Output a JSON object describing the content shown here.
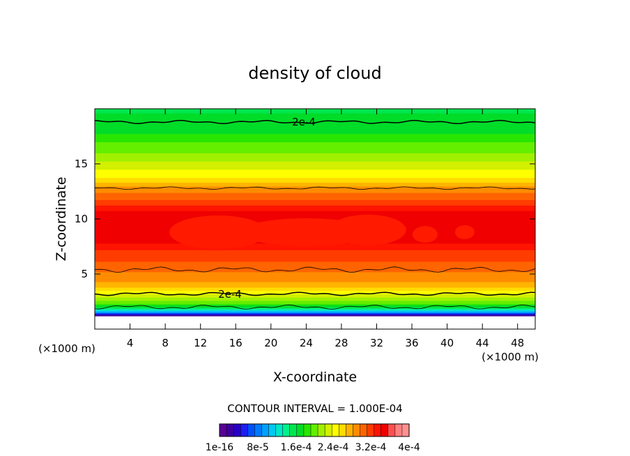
{
  "chart_data": {
    "type": "contour",
    "title": "density of cloud",
    "xlabel": "X-coordinate",
    "ylabel": "Z-coordinate",
    "x_unit": "(×1000 m)",
    "y_unit": "(×1000 m)",
    "xlim": [
      0,
      50
    ],
    "ylim": [
      0,
      20
    ],
    "x_ticks": [
      4,
      8,
      12,
      16,
      20,
      24,
      28,
      32,
      36,
      40,
      44,
      48
    ],
    "y_ticks": [
      5,
      10,
      15
    ],
    "contour_interval_text": "CONTOUR INTERVAL = 1.000E-04",
    "contour_labels": [
      "2e-4",
      "2e-4"
    ],
    "colorbar": {
      "labels": [
        "1e-16",
        "8e-5",
        "1.6e-4",
        "2.4e-4",
        "3.2e-4",
        "4e-4"
      ],
      "colors": [
        "#5a0096",
        "#3c00a0",
        "#2800c8",
        "#1e1ef0",
        "#0050ff",
        "#0078ff",
        "#00a0ff",
        "#00c8f0",
        "#00e6c8",
        "#00f08c",
        "#00e650",
        "#00dc28",
        "#28e600",
        "#64ee00",
        "#a0f000",
        "#d2f000",
        "#ffff00",
        "#ffdc00",
        "#ffb400",
        "#ff8c00",
        "#ff6400",
        "#ff3c00",
        "#ff1400",
        "#f00000",
        "#ff5050",
        "#ff8080",
        "#ff9090"
      ]
    },
    "profile": {
      "z": [
        0,
        1.2,
        1.6,
        2.0,
        2.4,
        2.8,
        3.2,
        3.6,
        4.0,
        4.6,
        5.2,
        5.8,
        6.5,
        7.2,
        8.0,
        9.0,
        10.0,
        11.0,
        12.0,
        12.8,
        13.5,
        14.5,
        15.5,
        16.5,
        17.5,
        18.5,
        20.0
      ],
      "density": [
        0.0,
        0.0,
        0.0001,
        0.00016,
        0.0002,
        0.00022,
        0.00024,
        0.00026,
        0.00028,
        0.00029,
        0.0003,
        0.00031,
        0.00032,
        0.00033,
        0.00035,
        0.00036,
        0.00036,
        0.00034,
        0.00031,
        0.00029,
        0.00026,
        0.00024,
        0.00022,
        0.0002,
        0.00018,
        0.00017,
        0.00016
      ]
    }
  }
}
